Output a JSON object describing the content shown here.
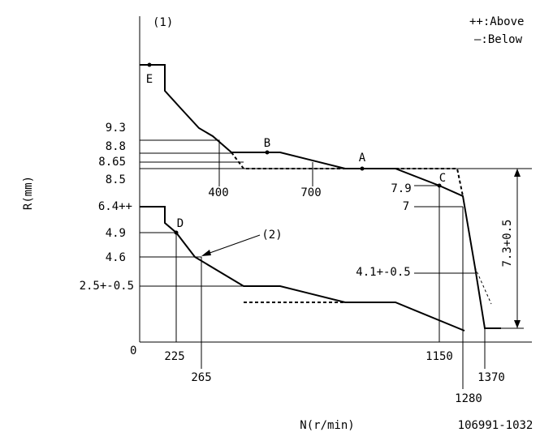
{
  "header": {
    "marker": "(1)",
    "legend_above": "++:Above",
    "legend_below": "—:Below"
  },
  "axes": {
    "y_title": "R(mm)",
    "x_title": "N(r/min)",
    "origin": "0"
  },
  "y_labels": [
    "9.3",
    "8.8",
    "8.65",
    "8.5",
    "6.4++",
    "4.9",
    "4.6",
    "2.5+-0.5"
  ],
  "x_labels": [
    "400",
    "700",
    "225",
    "265",
    "1150",
    "1280",
    "1370"
  ],
  "points": [
    "E",
    "B",
    "A",
    "C",
    "D",
    "(2)"
  ],
  "right_labels": [
    "7.9",
    "7",
    "4.1+-0.5",
    "7.3+0.5"
  ],
  "code": "106991-1032"
}
